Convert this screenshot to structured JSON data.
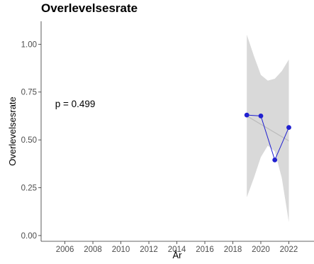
{
  "chart_data": {
    "type": "line",
    "title": "Overlevelsesrate",
    "xlabel": "År",
    "ylabel": "Overlevelsesrate",
    "xlim": [
      2004.3,
      2023.8
    ],
    "ylim": [
      -0.03,
      1.12
    ],
    "x_ticks": [
      2006,
      2008,
      2010,
      2012,
      2014,
      2016,
      2018,
      2020,
      2022
    ],
    "y_ticks": [
      0.0,
      0.25,
      0.5,
      0.75,
      1.0
    ],
    "y_tick_labels": [
      "0.00",
      "0.25",
      "0.50",
      "0.75",
      "1.00"
    ],
    "grid": false,
    "annotation": {
      "text": "p = 0.499",
      "x": 2005.3,
      "y": 0.69
    },
    "series": [
      {
        "x": [
          2019,
          2020,
          2021,
          2022
        ],
        "values": [
          0.63,
          0.625,
          0.395,
          0.565
        ],
        "color": "#2020d0",
        "marker": "circle"
      }
    ],
    "trend": {
      "x": [
        2019,
        2022
      ],
      "values": [
        0.625,
        0.495
      ],
      "color": "#bbbbbb"
    },
    "confidence_band": {
      "x": [
        2019,
        2019.5,
        2020,
        2020.5,
        2021,
        2021.5,
        2022
      ],
      "lower": [
        0.2,
        0.3,
        0.41,
        0.47,
        0.44,
        0.3,
        0.07
      ],
      "upper": [
        1.05,
        0.94,
        0.84,
        0.81,
        0.82,
        0.86,
        0.92
      ],
      "color": "#d9d9d9"
    }
  }
}
